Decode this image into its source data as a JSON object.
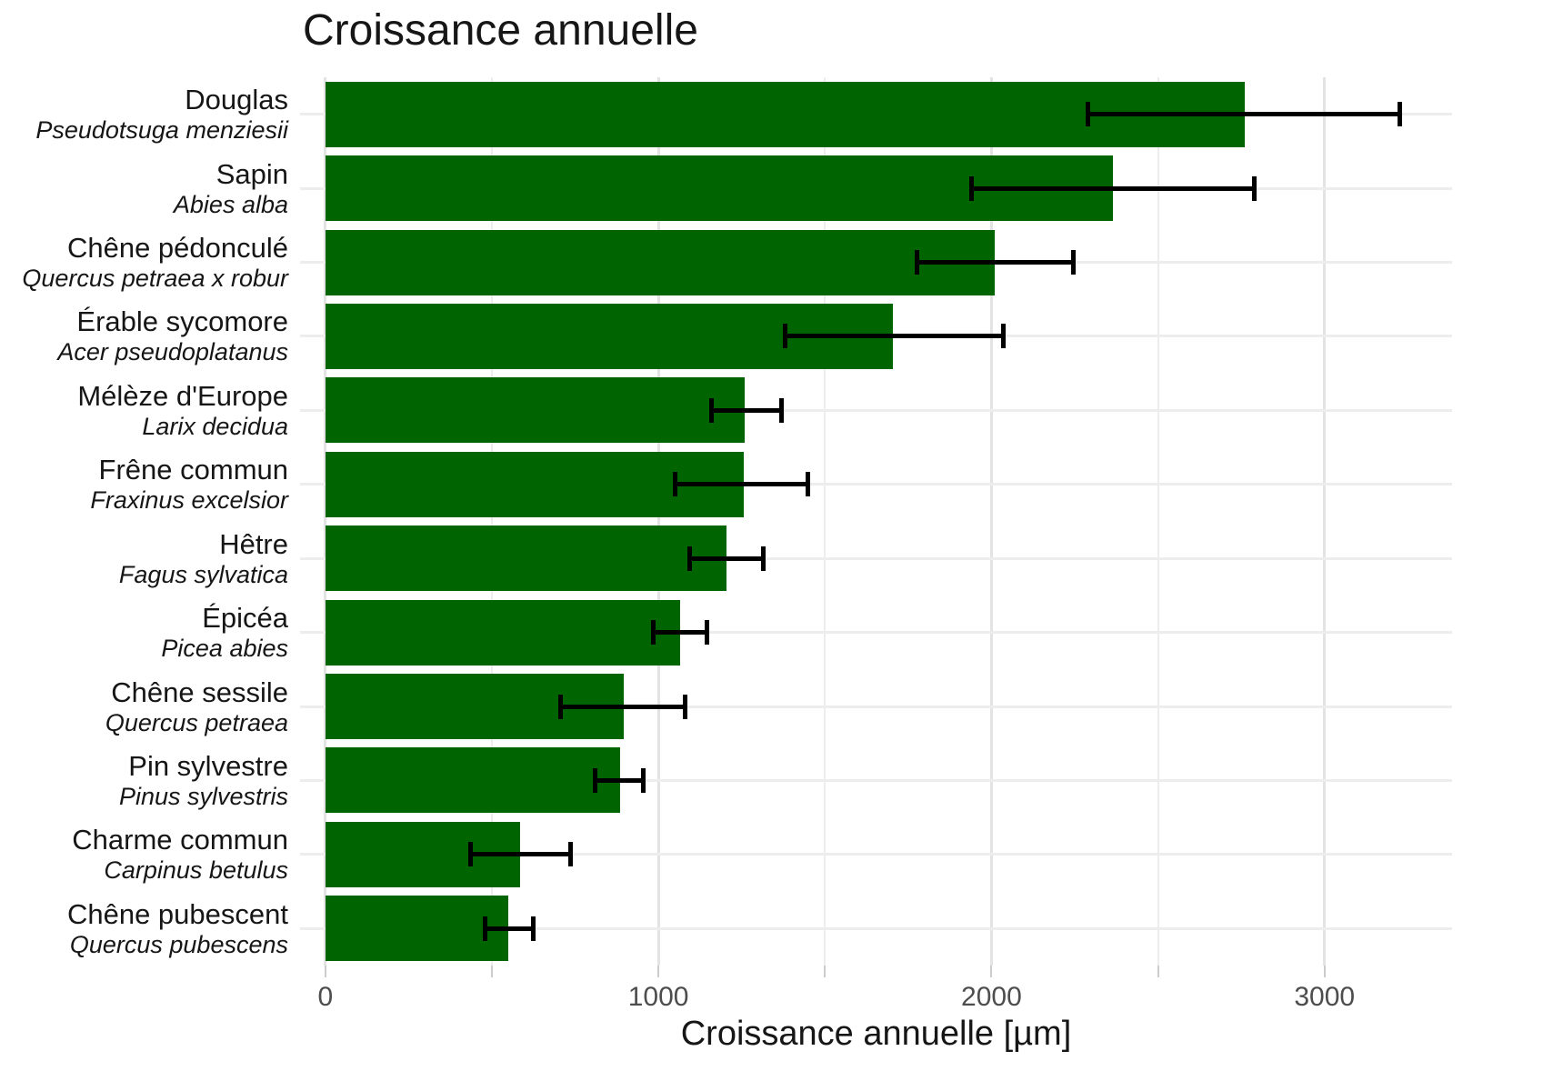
{
  "title": "Croissance annuelle",
  "x_axis_label": "Croissance annuelle [µm]",
  "chart_data": {
    "type": "bar",
    "orientation": "horizontal",
    "title": "Croissance annuelle",
    "xlabel": "Croissance annuelle [µm]",
    "grid": true,
    "legend": "none",
    "bar_color": "#006400",
    "error_bar_color": "#000000",
    "x_axis": {
      "panel_range": [
        -76,
        3383
      ],
      "tick_values": [
        0,
        1000,
        2000,
        3000
      ],
      "tick_labels": [
        "0",
        "1000",
        "2000",
        "3000"
      ],
      "minor_gridline_values": [
        500,
        1500,
        2500
      ],
      "tick_mark_values": [
        0,
        500,
        1000,
        1500,
        2000,
        2500,
        3000
      ]
    },
    "categories": [
      {
        "name": "Douglas",
        "species": "Pseudotsuga menziesii",
        "value": 2760,
        "err_low": 2290,
        "err_high": 3225
      },
      {
        "name": "Sapin",
        "species": "Abies alba",
        "value": 2365,
        "err_low": 1940,
        "err_high": 2790
      },
      {
        "name": "Chêne pédonculé",
        "species": "Quercus petraea x robur",
        "value": 2010,
        "err_low": 1775,
        "err_high": 2245
      },
      {
        "name": "Érable sycomore",
        "species": "Acer pseudoplatanus",
        "value": 1705,
        "err_low": 1380,
        "err_high": 2035
      },
      {
        "name": "Mélèze d'Europe",
        "species": "Larix decidua",
        "value": 1260,
        "err_low": 1160,
        "err_high": 1370
      },
      {
        "name": "Frêne commun",
        "species": "Fraxinus excelsior",
        "value": 1255,
        "err_low": 1050,
        "err_high": 1450
      },
      {
        "name": "Hêtre",
        "species": "Fagus sylvatica",
        "value": 1205,
        "err_low": 1095,
        "err_high": 1315
      },
      {
        "name": "Épicéa",
        "species": "Picea abies",
        "value": 1065,
        "err_low": 985,
        "err_high": 1145
      },
      {
        "name": "Chêne sessile",
        "species": "Quercus petraea",
        "value": 895,
        "err_low": 705,
        "err_high": 1080
      },
      {
        "name": "Pin sylvestre",
        "species": "Pinus sylvestris",
        "value": 885,
        "err_low": 810,
        "err_high": 955
      },
      {
        "name": "Charme commun",
        "species": "Carpinus betulus",
        "value": 585,
        "err_low": 435,
        "err_high": 735
      },
      {
        "name": "Chêne pubescent",
        "species": "Quercus pubescens",
        "value": 550,
        "err_low": 480,
        "err_high": 625
      }
    ]
  }
}
